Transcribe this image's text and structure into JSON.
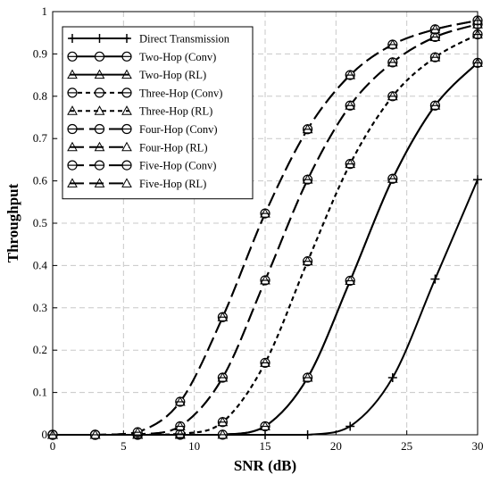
{
  "chart_data": {
    "type": "line",
    "title": "",
    "xlabel": "SNR (dB)",
    "ylabel": "Throughput",
    "xlim": [
      0,
      30
    ],
    "ylim": [
      0,
      1
    ],
    "xticks": [
      0,
      5,
      10,
      15,
      20,
      25,
      30
    ],
    "yticks": [
      0,
      0.1,
      0.2,
      0.3,
      0.4,
      0.5,
      0.6,
      0.7,
      0.8,
      0.9,
      1
    ],
    "grid": true,
    "legend_position": "top-left",
    "x": [
      0,
      3,
      6,
      9,
      12,
      15,
      18,
      21,
      24,
      27,
      30
    ],
    "series": [
      {
        "name": "Direct Transmission",
        "marker": "plus",
        "dash": "solid",
        "values": [
          0,
          0,
          0,
          0,
          0,
          0,
          0.0001,
          0.02,
          0.135,
          0.368,
          0.603
        ]
      },
      {
        "name": "Two-Hop (Conv)",
        "marker": "circle",
        "dash": "solid",
        "values": [
          0,
          0,
          0,
          0,
          0.0002,
          0.02,
          0.135,
          0.364,
          0.605,
          0.778,
          0.879
        ]
      },
      {
        "name": "Two-Hop (RL)",
        "marker": "triangle",
        "dash": "solid",
        "values": [
          0,
          0,
          0,
          0,
          0.0002,
          0.02,
          0.135,
          0.364,
          0.605,
          0.778,
          0.879
        ]
      },
      {
        "name": "Three-Hop (Conv)",
        "marker": "circle",
        "dash": "short",
        "values": [
          0,
          0,
          0,
          0.002,
          0.03,
          0.17,
          0.41,
          0.64,
          0.8,
          0.892,
          0.946
        ]
      },
      {
        "name": "Three-Hop (RL)",
        "marker": "triangle",
        "dash": "short",
        "values": [
          0,
          0,
          0,
          0.002,
          0.03,
          0.17,
          0.41,
          0.64,
          0.8,
          0.892,
          0.946
        ]
      },
      {
        "name": "Four-Hop (Conv)",
        "marker": "circle",
        "dash": "long",
        "values": [
          0,
          0,
          0.001,
          0.02,
          0.135,
          0.365,
          0.603,
          0.778,
          0.88,
          0.94,
          0.97
        ]
      },
      {
        "name": "Four-Hop (RL)",
        "marker": "triangle",
        "dash": "long",
        "values": [
          0,
          0,
          0.001,
          0.02,
          0.135,
          0.365,
          0.603,
          0.778,
          0.88,
          0.94,
          0.97
        ]
      },
      {
        "name": "Five-Hop (Conv)",
        "marker": "circle",
        "dash": "long",
        "values": [
          0,
          0,
          0.006,
          0.078,
          0.278,
          0.523,
          0.722,
          0.85,
          0.922,
          0.958,
          0.979
        ]
      },
      {
        "name": "Five-Hop (RL)",
        "marker": "triangle",
        "dash": "long",
        "values": [
          0,
          0,
          0.006,
          0.078,
          0.278,
          0.523,
          0.722,
          0.85,
          0.922,
          0.958,
          0.979
        ]
      }
    ]
  }
}
